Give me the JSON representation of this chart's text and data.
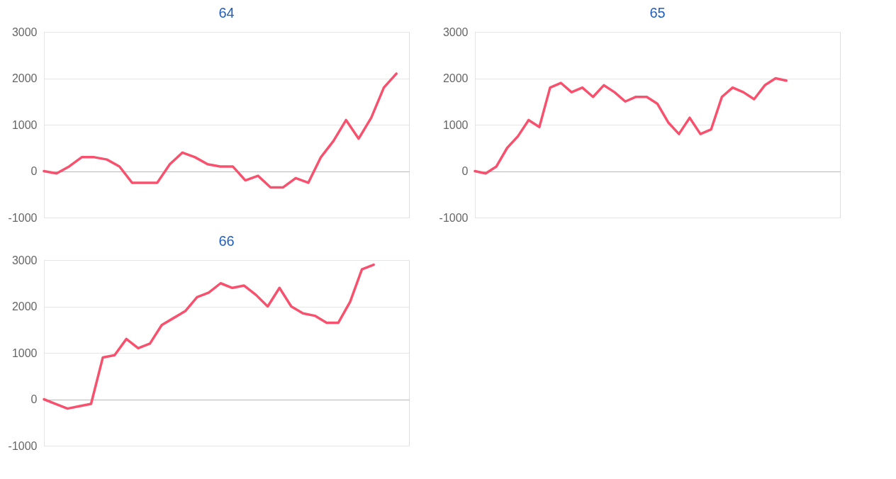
{
  "chart_data": [
    {
      "type": "line",
      "title": "64",
      "categories": [
        null,
        null,
        null,
        null,
        null,
        null,
        null,
        null,
        null,
        null,
        null,
        null,
        null,
        null,
        null,
        null,
        null,
        null,
        null,
        null,
        null,
        null,
        null,
        null,
        null,
        null,
        null,
        null,
        null,
        null
      ],
      "series": [
        {
          "color": "#f7516e",
          "values": [
            0,
            -50,
            100,
            300,
            300,
            250,
            100,
            -250,
            -250,
            -250,
            150,
            400,
            300,
            150,
            100,
            100,
            -200,
            -100,
            -350,
            -350,
            -150,
            -250,
            300,
            650,
            1100,
            700,
            1150,
            1800,
            2100,
            null
          ]
        }
      ],
      "ylim": [
        -1000,
        3000
      ],
      "yticks": [
        -1000,
        0,
        1000,
        2000,
        3000
      ],
      "grid": "y",
      "tick_labels": "y",
      "marker": "none",
      "line_style": "solid"
    },
    {
      "type": "line",
      "title": "65",
      "categories": [
        null,
        null,
        null,
        null,
        null,
        null,
        null,
        null,
        null,
        null,
        null,
        null,
        null,
        null,
        null,
        null,
        null,
        null,
        null,
        null,
        null,
        null,
        null,
        null,
        null,
        null,
        null,
        null,
        null,
        null,
        null,
        null,
        null,
        null,
        null
      ],
      "series": [
        {
          "color": "#f7516e",
          "values": [
            0,
            -50,
            100,
            500,
            750,
            1100,
            950,
            1800,
            1900,
            1700,
            1800,
            1600,
            1850,
            1700,
            1500,
            1600,
            1600,
            1450,
            1050,
            800,
            1150,
            800,
            900,
            1600,
            1800,
            1700,
            1550,
            1850,
            2000,
            1950,
            null,
            null,
            null,
            null,
            null
          ]
        }
      ],
      "ylim": [
        -1000,
        3000
      ],
      "yticks": [
        -1000,
        0,
        1000,
        2000,
        3000
      ],
      "grid": "y",
      "tick_labels": "y",
      "marker": "none",
      "line_style": "solid"
    },
    {
      "type": "line",
      "title": "66",
      "categories": [
        null,
        null,
        null,
        null,
        null,
        null,
        null,
        null,
        null,
        null,
        null,
        null,
        null,
        null,
        null,
        null,
        null,
        null,
        null,
        null,
        null,
        null,
        null,
        null,
        null,
        null,
        null,
        null,
        null,
        null,
        null,
        null
      ],
      "series": [
        {
          "color": "#f7516e",
          "values": [
            0,
            -100,
            -200,
            -150,
            -100,
            900,
            950,
            1300,
            1100,
            1200,
            1600,
            1750,
            1900,
            2200,
            2300,
            2500,
            2400,
            2450,
            2250,
            2000,
            2400,
            2000,
            1850,
            1800,
            1650,
            1650,
            2100,
            2800,
            2900,
            null,
            null,
            null
          ]
        }
      ],
      "ylim": [
        -1000,
        3000
      ],
      "yticks": [
        -1000,
        0,
        1000,
        2000,
        3000
      ],
      "grid": "y",
      "tick_labels": "y",
      "marker": "none",
      "line_style": "solid"
    }
  ]
}
